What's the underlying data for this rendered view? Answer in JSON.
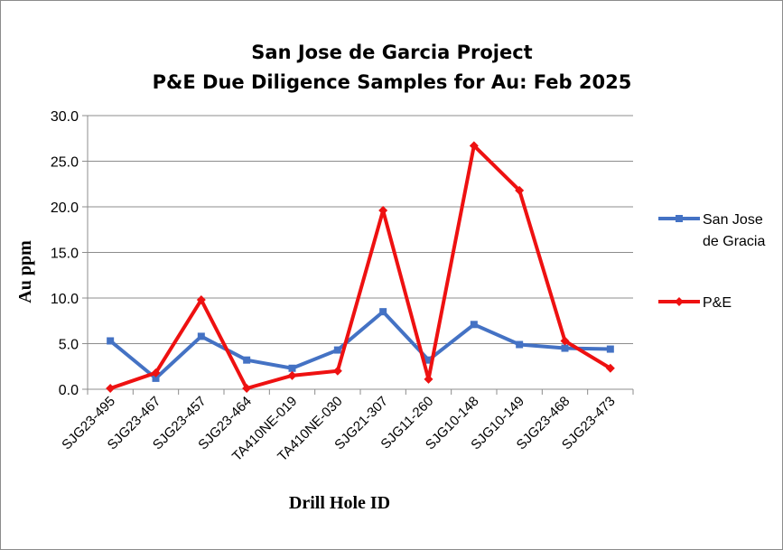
{
  "chart_data": {
    "type": "line",
    "title_lines": [
      "San Jose de Garcia Project",
      "P&E Due Diligence Samples for Au: Feb 2025"
    ],
    "xlabel": "Drill  Hole ID",
    "ylabel": "Au  ppm",
    "ylim": [
      0,
      30
    ],
    "yticks": [
      "0.0",
      "5.0",
      "10.0",
      "15.0",
      "20.0",
      "25.0",
      "30.0"
    ],
    "grid": true,
    "legend_position": "right",
    "categories": [
      "SJG23-495",
      "SJG23-467",
      "SJG23-457",
      "SJG23-464",
      "TA410NE-019",
      "TA410NE-030",
      "SJG21-307",
      "SJG11-260",
      "SJG10-148",
      "SJG10-149",
      "SJG23-468",
      "SJG23-473"
    ],
    "series": [
      {
        "name": "San Jose de Gracia",
        "legend_lines": [
          "San Jose",
          "de Gracia"
        ],
        "color": "#4472c4",
        "marker": "square",
        "values": [
          5.3,
          1.2,
          5.8,
          3.2,
          2.3,
          4.3,
          8.5,
          3.2,
          7.1,
          4.9,
          4.5,
          4.4
        ]
      },
      {
        "name": "P&E",
        "legend_lines": [
          "P&E"
        ],
        "color": "#ee1111",
        "marker": "diamond",
        "values": [
          0.1,
          1.8,
          9.8,
          0.1,
          1.5,
          2.0,
          19.6,
          1.1,
          26.7,
          21.8,
          5.3,
          2.3
        ]
      }
    ]
  }
}
